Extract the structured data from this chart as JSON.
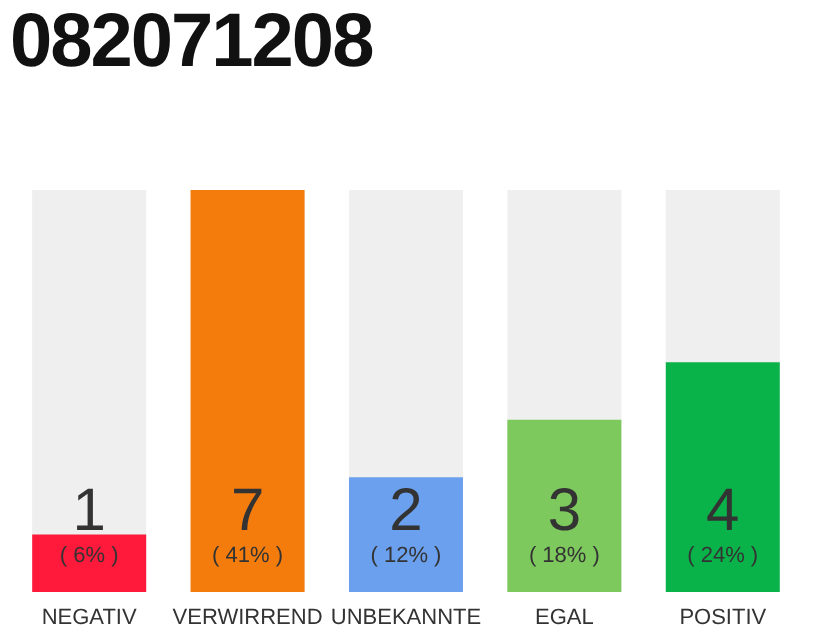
{
  "chart_data": {
    "type": "bar",
    "title": "082071208",
    "categories": [
      "NEGATIV",
      "VERWIRREND",
      "UNBEKANNTE",
      "EGAL",
      "POSITIV"
    ],
    "values": [
      1,
      7,
      2,
      3,
      4
    ],
    "colors": [
      "#ff1a3c",
      "#f47c0c",
      "#6aa0ee",
      "#7dc95e",
      "#0ab34a"
    ],
    "data_labels": true,
    "annotations": [
      "( 6% )",
      "( 41% )",
      "( 12% )",
      "( 18% )",
      "( 24% )"
    ],
    "grid": false,
    "legend": false
  }
}
